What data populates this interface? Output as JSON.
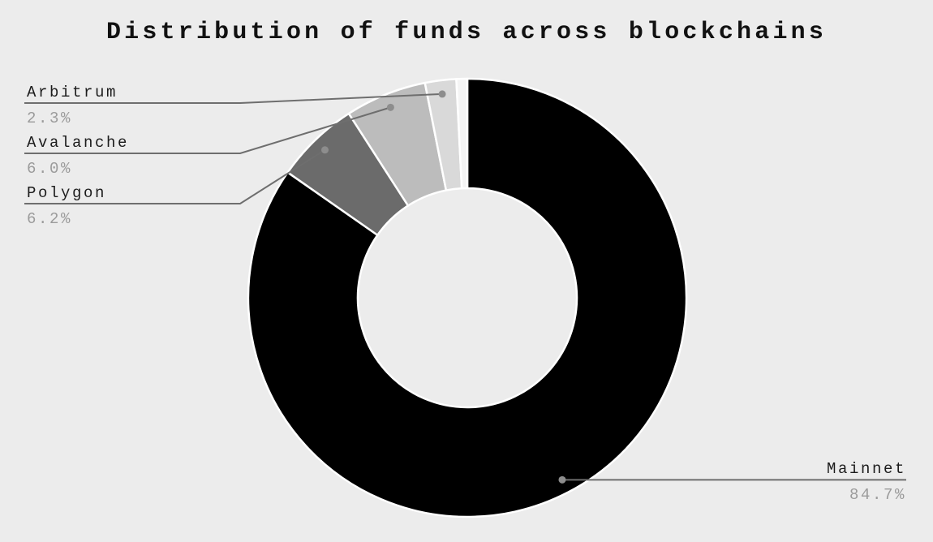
{
  "page": {
    "background_color": "#ececec"
  },
  "title": "Distribution of funds across blockchains",
  "chart_data": {
    "type": "pie",
    "subtype": "donut",
    "title": "Distribution of funds across blockchains",
    "unit": "percent",
    "direction": "clockwise",
    "start_angle_deg": 0,
    "inner_radius_ratio": 0.5,
    "legend": "leader-line callouts",
    "segments": [
      {
        "label": "Mainnet",
        "value": 84.7,
        "display_value": "84.7%",
        "color": "#000000",
        "callout": "right"
      },
      {
        "label": "Polygon",
        "value": 6.2,
        "display_value": "6.2%",
        "color": "#6b6b6b",
        "callout": "left"
      },
      {
        "label": "Avalanche",
        "value": 6.0,
        "display_value": "6.0%",
        "color": "#bcbcbc",
        "callout": "left"
      },
      {
        "label": "Arbitrum",
        "value": 2.3,
        "display_value": "2.3%",
        "color": "#d9d9d9",
        "callout": "left"
      },
      {
        "label": "",
        "value": 0.8,
        "display_value": "",
        "color": "#f4f4f4",
        "callout": "none",
        "unlabeled": true
      }
    ],
    "callout_style": {
      "line_color": "#6e6e6e",
      "dot_color": "#8d8d8d",
      "slice_border_color": "#ffffff",
      "label_color": "#1c1c1c",
      "value_color": "#9b9b9b"
    }
  }
}
